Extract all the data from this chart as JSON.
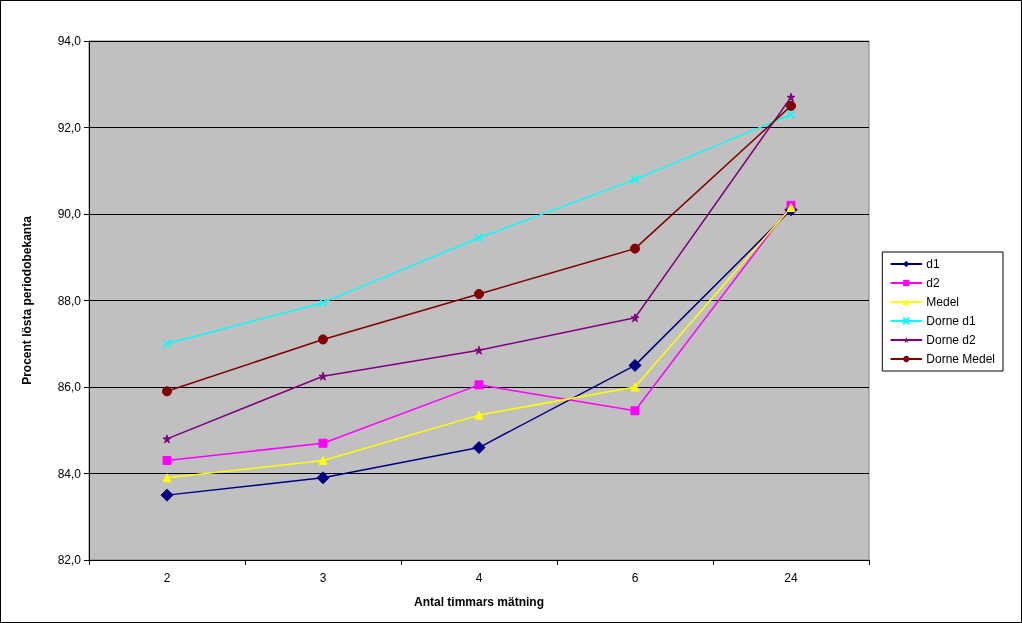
{
  "chart_data": {
    "type": "line",
    "xlabel": "Antal timmars mätning",
    "ylabel": "Procent lösta periodobekanta",
    "categories": [
      "2",
      "3",
      "4",
      "6",
      "24"
    ],
    "series": [
      {
        "name": "d1",
        "color": "#000080",
        "marker": "diamond",
        "values": [
          83.5,
          83.9,
          84.6,
          86.5,
          90.1
        ]
      },
      {
        "name": "d2",
        "color": "#ff00ff",
        "marker": "square",
        "values": [
          84.3,
          84.7,
          86.05,
          85.45,
          90.2
        ]
      },
      {
        "name": "Medel",
        "color": "#ffff00",
        "marker": "triangle",
        "values": [
          83.9,
          84.3,
          85.35,
          86.0,
          90.15
        ]
      },
      {
        "name": "Dorne d1",
        "color": "#00ffff",
        "marker": "cross",
        "values": [
          87.0,
          87.95,
          89.45,
          90.8,
          92.3
        ]
      },
      {
        "name": "Dorne d2",
        "color": "#800080",
        "marker": "star",
        "values": [
          84.8,
          86.25,
          86.85,
          87.6,
          92.7
        ]
      },
      {
        "name": "Dorne Medel",
        "color": "#800000",
        "marker": "circle",
        "values": [
          85.9,
          87.1,
          88.15,
          89.2,
          92.5
        ]
      }
    ],
    "ylim": [
      82,
      94
    ],
    "yticks": [
      {
        "value": 82,
        "label": "82,0"
      },
      {
        "value": 84,
        "label": "84,0"
      },
      {
        "value": 86,
        "label": "86,0"
      },
      {
        "value": 88,
        "label": "88,0"
      },
      {
        "value": 90,
        "label": "90,0"
      },
      {
        "value": 92,
        "label": "92,0"
      },
      {
        "value": 94,
        "label": "94,0"
      }
    ],
    "grid": "y",
    "legend": "right",
    "line_style": "solid"
  }
}
